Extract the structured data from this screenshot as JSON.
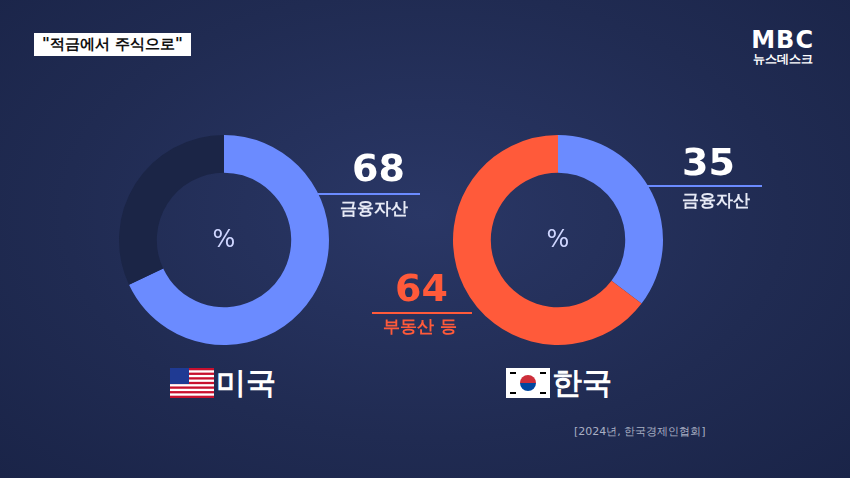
{
  "header": {
    "tag": "\"적금에서 주식으로\"",
    "logo": "MBC",
    "program": "뉴스데스크"
  },
  "source": "[2024년, 한국경제인협회]",
  "chart_data": [
    {
      "type": "doughnut",
      "title": "미국",
      "center_text": "%",
      "categories": [
        "금융자산",
        null
      ],
      "values": [
        68,
        32
      ],
      "colors": [
        "#6b8bff",
        "#1b2546"
      ],
      "data_labels": true,
      "legend": false
    },
    {
      "type": "doughnut",
      "title": "한국",
      "center_text": "%",
      "categories": [
        "금융자산",
        "부동산 등"
      ],
      "values": [
        35,
        64
      ],
      "colors": [
        "#6b8bff",
        "#ff5a3a"
      ],
      "data_labels": true,
      "legend": false
    }
  ]
}
